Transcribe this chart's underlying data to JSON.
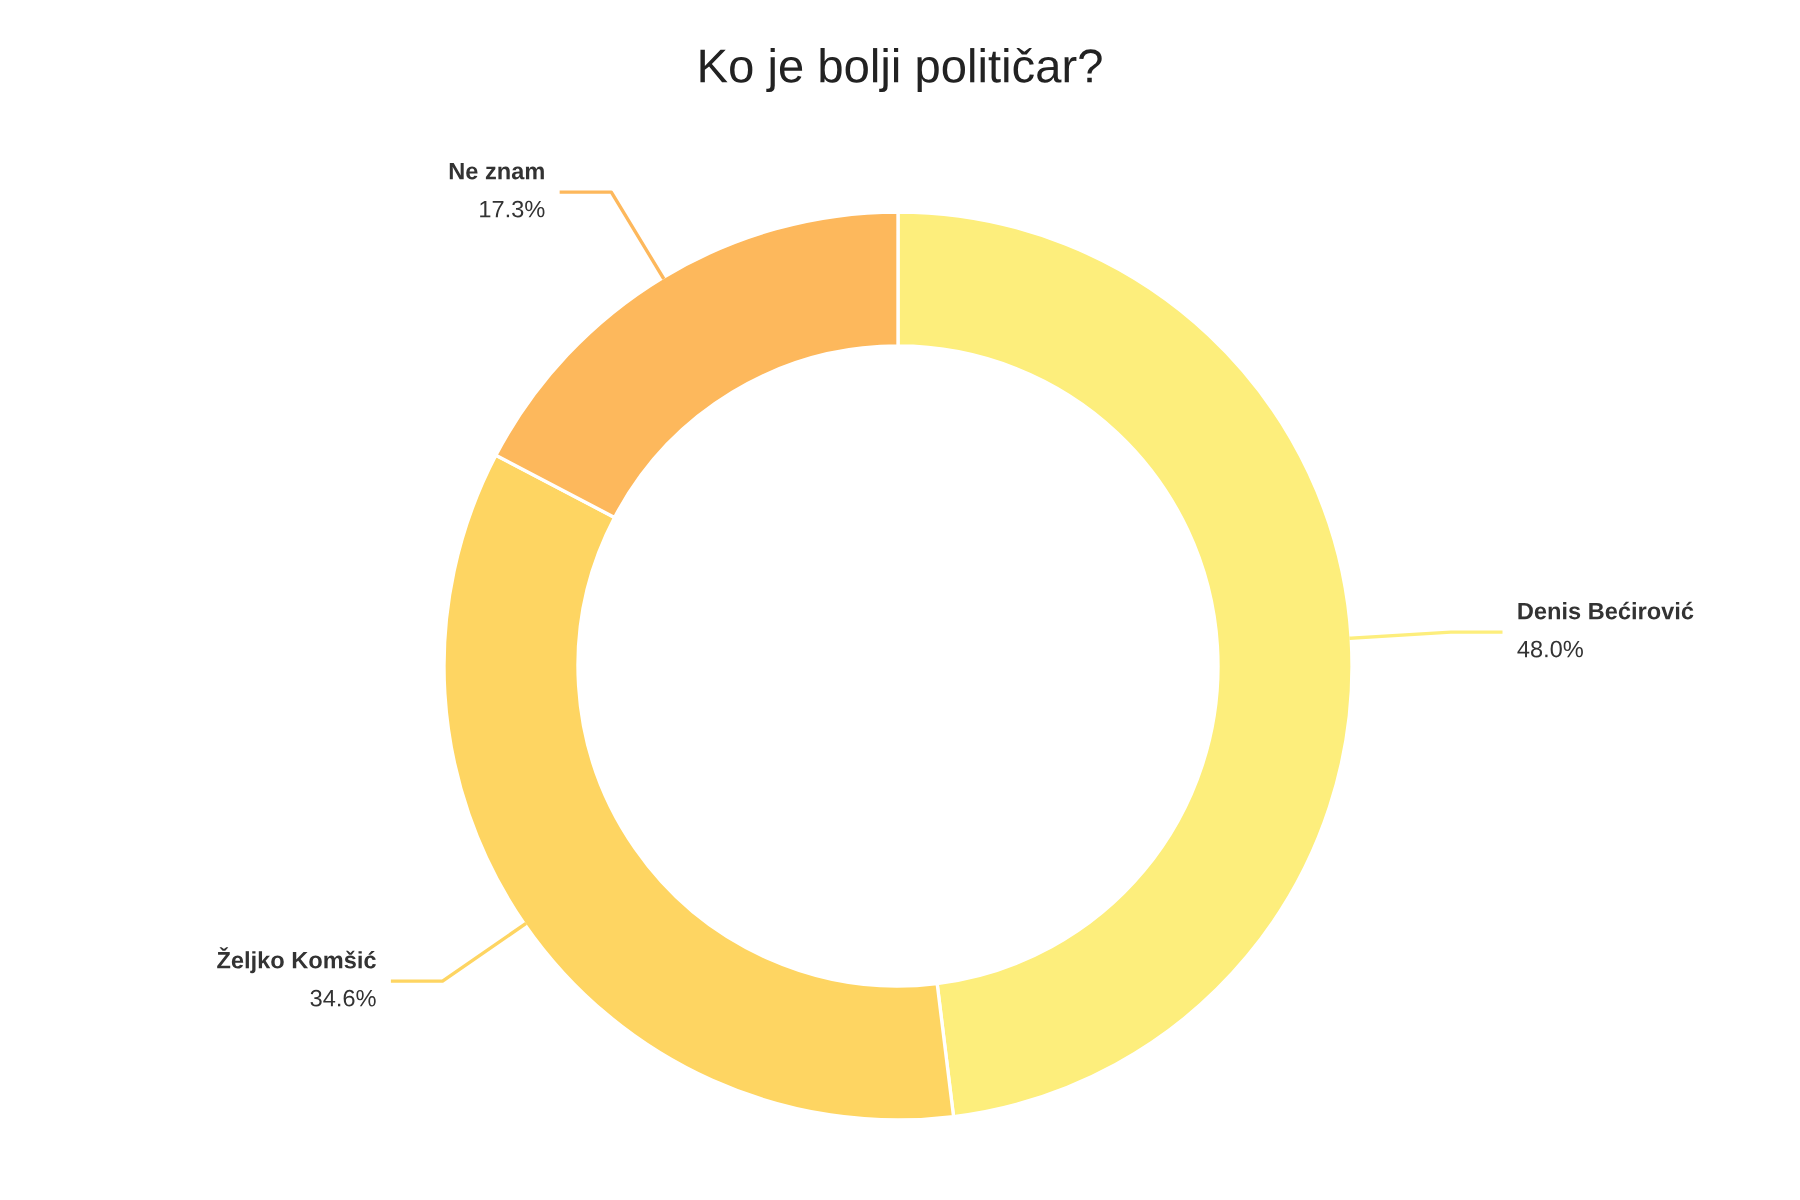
{
  "chart_data": {
    "type": "donut",
    "title": "Ko je bolji političar?",
    "categories": [
      "Denis Bećirović",
      "Željko Komšić",
      "Ne znam"
    ],
    "values": [
      48.0,
      34.6,
      17.3
    ],
    "value_labels": [
      "48.0%",
      "34.6%",
      "17.3%"
    ],
    "colors": [
      "#fdee7c",
      "#fed562",
      "#fdb85c"
    ],
    "legend": false
  }
}
